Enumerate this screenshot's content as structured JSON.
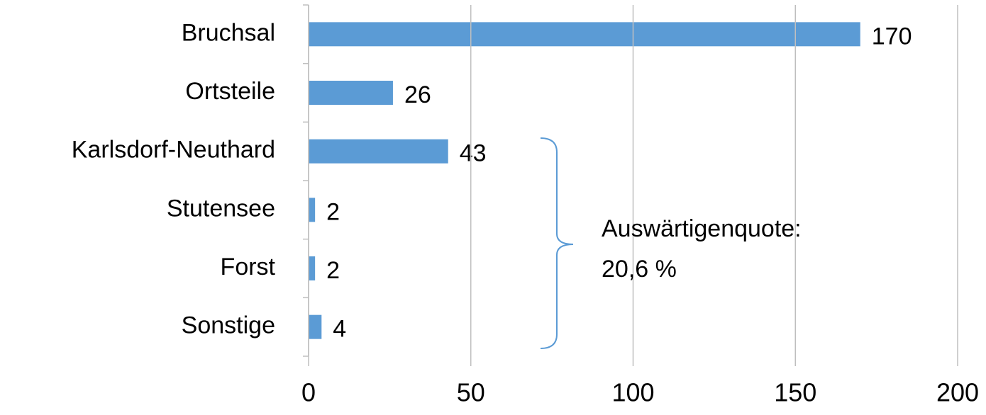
{
  "chart_data": {
    "type": "bar",
    "orientation": "horizontal",
    "categories": [
      "Bruchsal",
      "Ortsteile",
      "Karlsdorf-Neuthard",
      "Stutensee",
      "Forst",
      "Sonstige"
    ],
    "values": [
      170,
      26,
      43,
      2,
      2,
      4
    ],
    "color": "#5b9bd5",
    "xlim": [
      0,
      200
    ],
    "xticks": [
      0,
      50,
      100,
      150,
      200
    ],
    "grid": true,
    "annotation": [
      "Auswärtigenquote:",
      "20,6 %"
    ]
  }
}
